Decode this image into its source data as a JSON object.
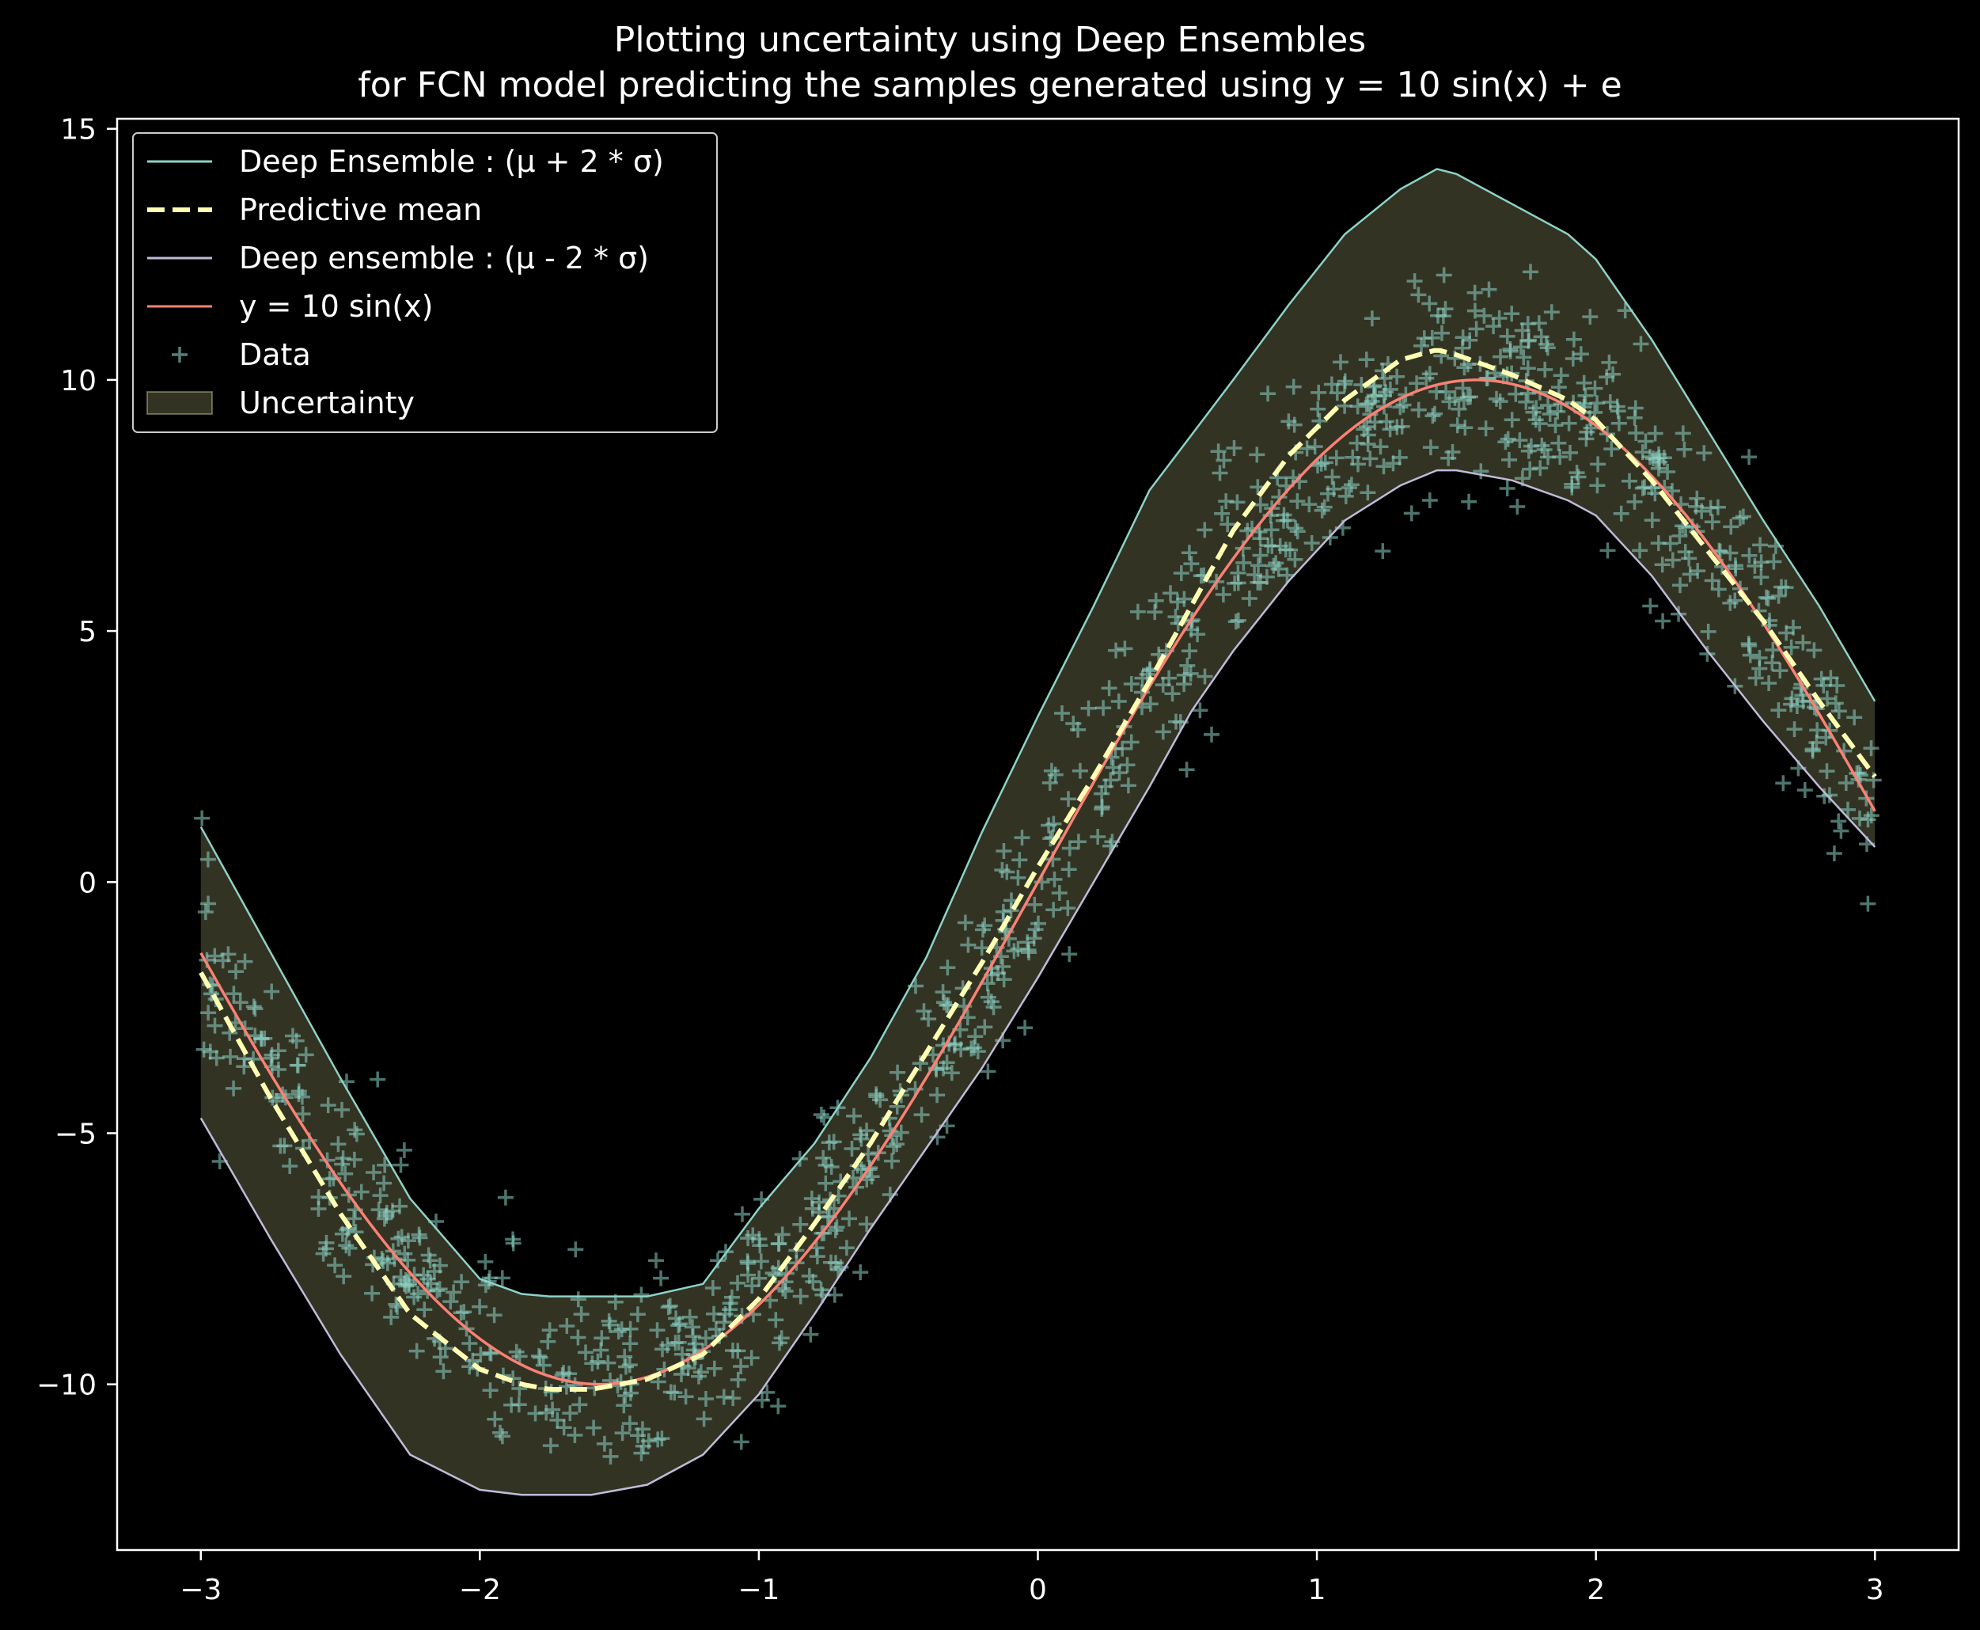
{
  "chart_data": {
    "type": "line",
    "title": "Plotting uncertainty using Deep Ensembles",
    "subtitle": "for FCN model predicting the samples generated using y = 10 sin(x) + e",
    "xlabel": "",
    "ylabel": "",
    "xlim": [
      -3.3,
      3.3
    ],
    "ylim": [
      -13.3,
      15.2
    ],
    "xticks": [
      -3,
      -2,
      -1,
      0,
      1,
      2,
      3
    ],
    "xtick_labels": [
      "−3",
      "−2",
      "−1",
      "0",
      "1",
      "2",
      "3"
    ],
    "yticks": [
      -10,
      -5,
      0,
      5,
      10,
      15
    ],
    "ytick_labels": [
      "−10",
      "−5",
      "0",
      "5",
      "10",
      "15"
    ],
    "grid": false,
    "legend_position": "top-left",
    "background": "#000000",
    "colors": {
      "upper": "#8dd3c7",
      "mean": "#feffb3",
      "lower": "#bfbbd9",
      "true": "#fa8174",
      "data": "#8dd3c7",
      "uncertainty_fill": "#feffb3"
    },
    "x": [
      -3.0,
      -2.75,
      -2.5,
      -2.25,
      -2.0,
      -1.85,
      -1.75,
      -1.6,
      -1.4,
      -1.2,
      -1.0,
      -0.8,
      -0.6,
      -0.4,
      -0.2,
      0.0,
      0.2,
      0.4,
      0.55,
      0.7,
      0.9,
      1.1,
      1.3,
      1.43,
      1.5,
      1.7,
      1.9,
      2.0,
      2.2,
      2.4,
      2.6,
      2.8,
      3.0
    ],
    "series": [
      {
        "name": "Deep Ensemble : (μ + 2 * σ)",
        "role": "upper",
        "values": [
          1.1,
          -1.4,
          -3.9,
          -6.3,
          -7.9,
          -8.2,
          -8.25,
          -8.25,
          -8.25,
          -8.0,
          -6.5,
          -5.2,
          -3.5,
          -1.5,
          1.0,
          3.3,
          5.5,
          7.8,
          8.9,
          10.0,
          11.5,
          12.9,
          13.8,
          14.2,
          14.1,
          13.5,
          12.9,
          12.4,
          10.8,
          9.0,
          7.2,
          5.5,
          3.6
        ]
      },
      {
        "name": "Predictive mean",
        "role": "mean",
        "values": [
          -1.8,
          -4.3,
          -6.6,
          -8.6,
          -9.7,
          -10.0,
          -10.1,
          -10.1,
          -9.9,
          -9.4,
          -8.3,
          -6.8,
          -5.2,
          -3.4,
          -1.6,
          0.3,
          2.1,
          4.0,
          5.5,
          7.0,
          8.5,
          9.6,
          10.4,
          10.6,
          10.5,
          10.1,
          9.6,
          9.2,
          8.0,
          6.6,
          5.2,
          3.6,
          2.1
        ]
      },
      {
        "name": "Deep ensemble : (μ - 2 * σ)",
        "role": "lower",
        "values": [
          -4.7,
          -7.1,
          -9.4,
          -11.4,
          -12.1,
          -12.2,
          -12.2,
          -12.2,
          -12.0,
          -11.4,
          -10.2,
          -8.6,
          -6.9,
          -5.3,
          -3.7,
          -1.9,
          0.0,
          1.9,
          3.4,
          4.6,
          6.0,
          7.2,
          7.9,
          8.2,
          8.2,
          8.0,
          7.6,
          7.3,
          6.1,
          4.6,
          3.2,
          1.9,
          0.7
        ]
      },
      {
        "name": "y = 10 sin(x)",
        "role": "true",
        "function": "10*sin(x)"
      }
    ],
    "scatter": {
      "name": "Data",
      "marker": "+",
      "n": 1000,
      "noise": "Gaussian, sd about 1"
    },
    "fill": {
      "name": "Uncertainty",
      "between": [
        "upper",
        "lower"
      ]
    },
    "legend": [
      {
        "label": "Deep Ensemble : (μ + 2 * σ)",
        "style": "line",
        "color": "#8dd3c7"
      },
      {
        "label": "Predictive mean",
        "style": "dashed",
        "color": "#feffb3"
      },
      {
        "label": "Deep ensemble : (μ - 2 * σ)",
        "style": "line",
        "color": "#bfbbd9"
      },
      {
        "label": "y = 10 sin(x)",
        "style": "line",
        "color": "#fa8174"
      },
      {
        "label": "Data",
        "style": "plus",
        "color": "#8dd3c7"
      },
      {
        "label": "Uncertainty",
        "style": "patch",
        "color": "#feffb3"
      }
    ]
  }
}
